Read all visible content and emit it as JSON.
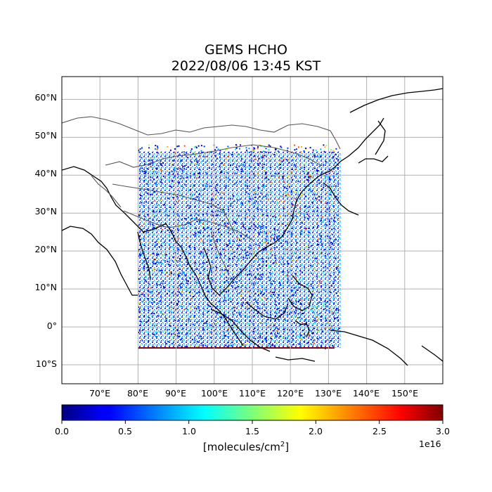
{
  "title": {
    "line1": "GEMS HCHO",
    "line2": "2022/08/06 13:45 KST"
  },
  "map": {
    "lon_range": [
      60,
      160
    ],
    "lat_range": [
      -15,
      66
    ],
    "lon_ticks": [
      "70°E",
      "80°E",
      "90°E",
      "100°E",
      "110°E",
      "120°E",
      "130°E",
      "140°E",
      "150°E"
    ],
    "lat_ticks": [
      "60°N",
      "50°N",
      "40°N",
      "30°N",
      "20°N",
      "10°N",
      "0°",
      "10°S"
    ],
    "grid": true
  },
  "colorbar": {
    "colormap": "jet",
    "range": [
      0.0,
      3.0
    ],
    "ticks": [
      "0.0",
      "0.5",
      "1.0",
      "1.5",
      "2.0",
      "2.5",
      "3.0"
    ],
    "label": "[molecules/cm",
    "label_sup": "2",
    "label_end": "]",
    "offset_text": "1e16"
  }
}
